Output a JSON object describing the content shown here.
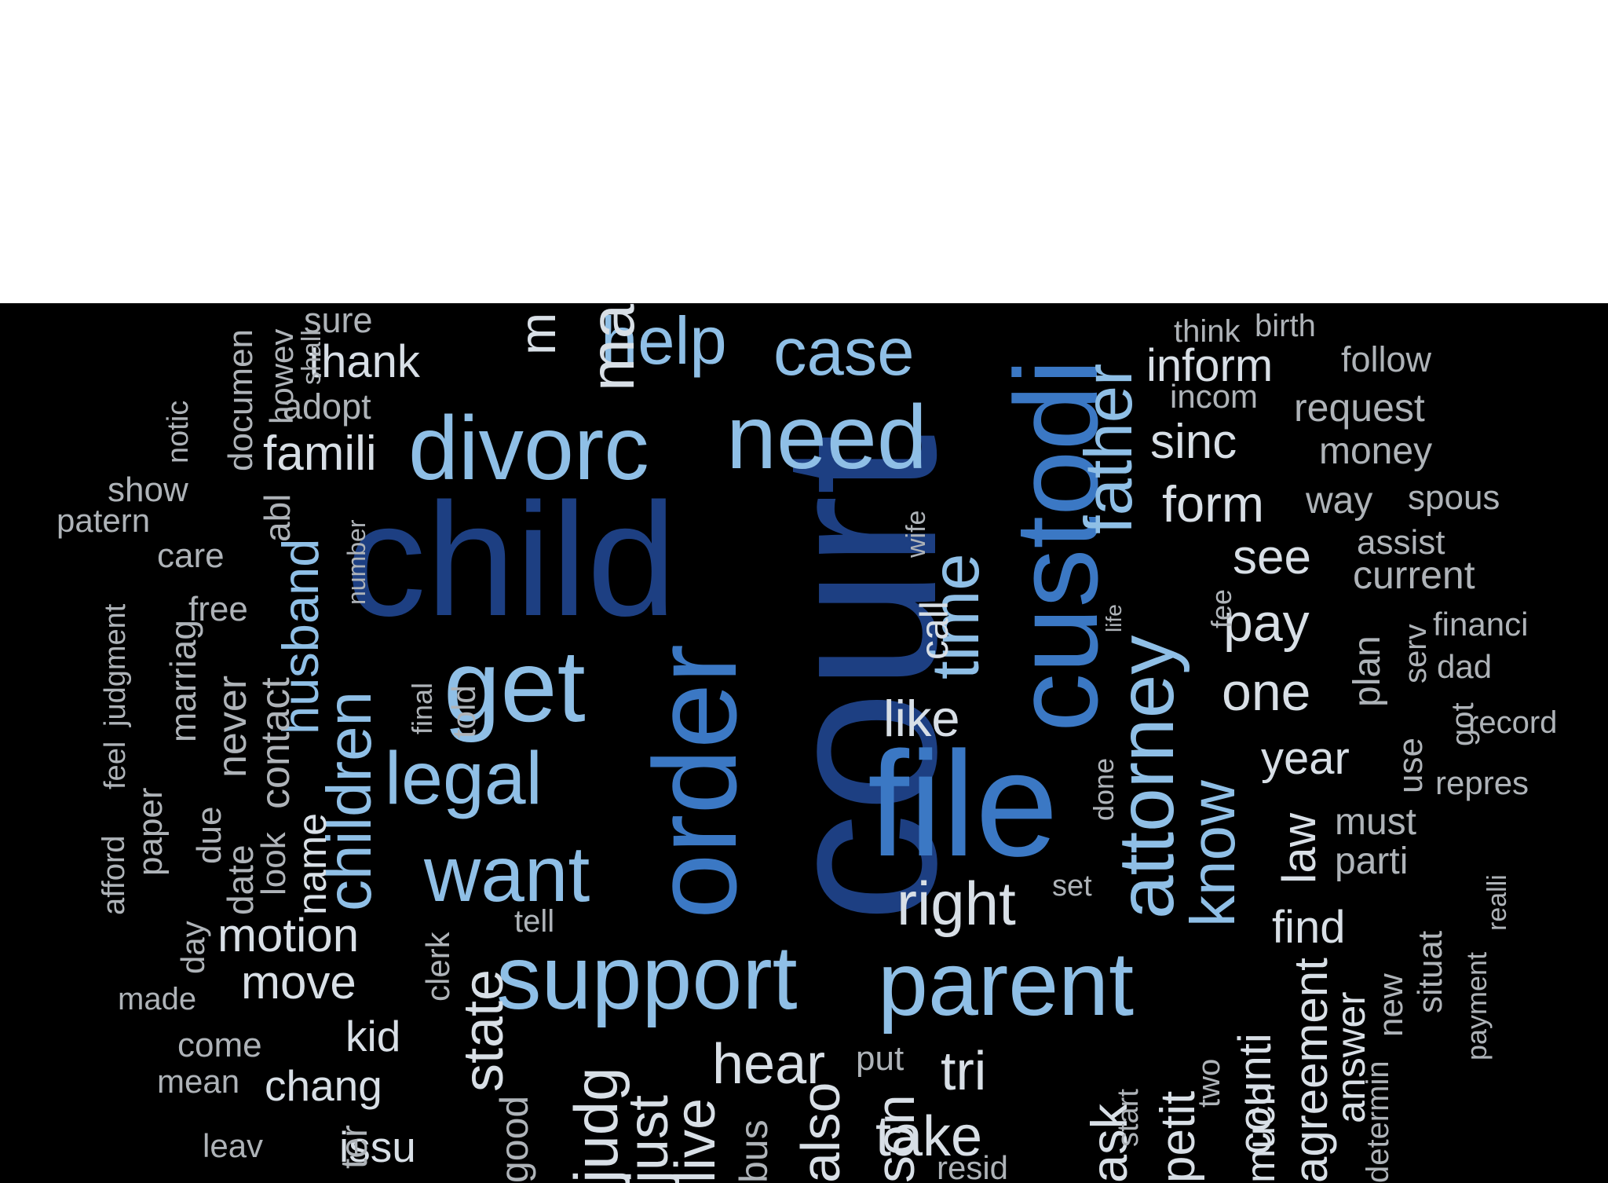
{
  "palette": {
    "dark": "#1d3f82",
    "mid": "#3b78c4",
    "light": "#8fbfe6",
    "pale": "#d8dfe6",
    "grey": "#aeb3b8",
    "background": "#000000"
  },
  "words": [
    "court",
    "child",
    "custodi",
    "file",
    "order",
    "divorc",
    "need",
    "get",
    "support",
    "parent",
    "attorney",
    "help",
    "case",
    "father",
    "time",
    "legal",
    "want",
    "children",
    "husband",
    "right",
    "know",
    "famili",
    "thank",
    "inform",
    "sinc",
    "form",
    "see",
    "pay",
    "one",
    "year",
    "like",
    "state",
    "motion",
    "move",
    "hear",
    "take",
    "judg",
    "live",
    "tri",
    "counti",
    "agreement",
    "answer",
    "law",
    "find",
    "just",
    "petit",
    "ask",
    "also",
    "issu",
    "chang",
    "kid",
    "sure",
    "adopt",
    "think",
    "birth",
    "follow",
    "incom",
    "request",
    "money",
    "way",
    "spous",
    "assist",
    "current",
    "financi",
    "dad",
    "record",
    "repres",
    "must",
    "parti",
    "realli",
    "serv",
    "plan",
    "use",
    "got",
    "fee",
    "life",
    "done",
    "set",
    "tell",
    "call",
    "wife",
    "number",
    "told",
    "final",
    "contact",
    "name",
    "look",
    "date",
    "due",
    "never",
    "marriag",
    "free",
    "care",
    "abl",
    "show",
    "patern",
    "paper",
    "afford",
    "feel",
    "judgment",
    "day",
    "made",
    "come",
    "mean",
    "leav",
    "clerk",
    "put",
    "resid",
    "two",
    "start",
    "new",
    "situat",
    "payment",
    "determin",
    "notic",
    "documen",
    "howev",
    "shall",
    "ma",
    "m",
    "son",
    "much",
    "bus",
    "good",
    "ter"
  ]
}
